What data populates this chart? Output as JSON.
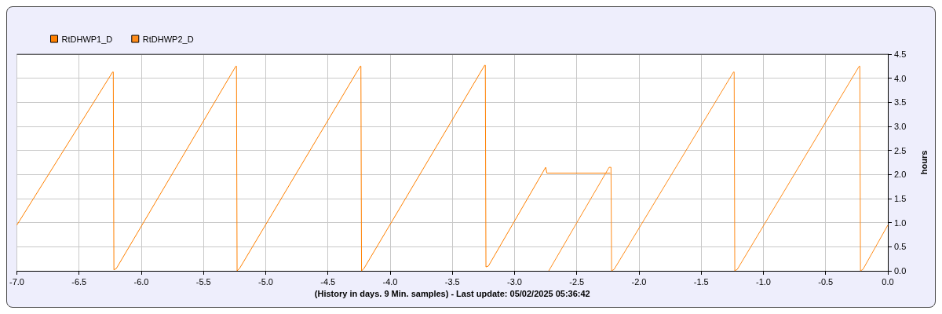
{
  "chart_data": {
    "type": "line",
    "xlabel": "(History in days. 9 Min. samples) - Last update: 05/02/2025 05:36:42",
    "ylabel": "hours",
    "series": [
      {
        "name": "RtDHWP1_D",
        "color": "#ff8000",
        "x": [
          -7,
          -6.23,
          -6.225,
          -6.22,
          -6.2,
          -5.24,
          -5.235,
          -5.23,
          -5.21,
          -4.24,
          -4.235,
          -4.23,
          -4.21,
          -3.24,
          -3.235,
          -3.23,
          -3.21,
          -2.75,
          -2.74,
          -2.23
        ],
        "values": [
          0.95,
          4.13,
          4.13,
          0.02,
          0.05,
          4.25,
          4.25,
          0,
          0.05,
          4.25,
          4.25,
          0,
          0.05,
          4.27,
          4.27,
          0.08,
          0.1,
          2.15,
          2.03,
          2.03
        ]
      },
      {
        "name": "RtDHWP2_D",
        "color": "#ff8c1a",
        "x": [
          -2.725,
          -2.24,
          -2.225,
          -2.22,
          -2.2,
          -1.24,
          -1.235,
          -1.23,
          -1.21,
          -0.23,
          -0.225,
          -0.22,
          -0.2,
          0
        ],
        "values": [
          0,
          2.15,
          2.15,
          0,
          0.03,
          4.13,
          4.13,
          0,
          0.03,
          4.25,
          4.25,
          0,
          0.03,
          0.95
        ]
      }
    ],
    "xlim": [
      -7,
      0
    ],
    "xticks": [
      {
        "value": -7,
        "label": "-7.0"
      },
      {
        "value": -6.5,
        "label": "-6.5"
      },
      {
        "value": -6,
        "label": "-6.0"
      },
      {
        "value": -5.5,
        "label": "-5.5"
      },
      {
        "value": -5,
        "label": "-5.0"
      },
      {
        "value": -4.5,
        "label": "-4.5"
      },
      {
        "value": -4,
        "label": "-4.0"
      },
      {
        "value": -3.5,
        "label": "-3.5"
      },
      {
        "value": -3,
        "label": "-3.0"
      },
      {
        "value": -2.5,
        "label": "-2.5"
      },
      {
        "value": -2,
        "label": "-2.0"
      },
      {
        "value": -1.5,
        "label": "-1.5"
      },
      {
        "value": -1,
        "label": "-1.0"
      },
      {
        "value": -0.5,
        "label": "-0.5"
      },
      {
        "value": 0,
        "label": "0.0"
      }
    ],
    "ylim": [
      0,
      4.5
    ],
    "yticks": [
      {
        "value": 0,
        "label": "0.0"
      },
      {
        "value": 0.5,
        "label": "0.5"
      },
      {
        "value": 1,
        "label": "1.0"
      },
      {
        "value": 1.5,
        "label": "1.5"
      },
      {
        "value": 2,
        "label": "2.0"
      },
      {
        "value": 2.5,
        "label": "2.5"
      },
      {
        "value": 3,
        "label": "3.0"
      },
      {
        "value": 3.5,
        "label": "3.5"
      },
      {
        "value": 4,
        "label": "4.0"
      },
      {
        "value": 4.5,
        "label": "4.5"
      }
    ],
    "grid": true,
    "legend": "top left"
  }
}
